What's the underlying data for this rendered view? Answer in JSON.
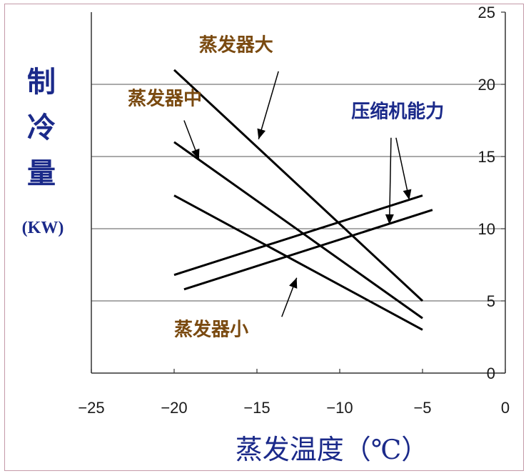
{
  "chart_data": {
    "type": "line",
    "xlabel": "蒸发温度（℃）",
    "ylabel": [
      "制",
      "冷",
      "量"
    ],
    "ylabel_unit": "(KW)",
    "xlim": [
      -25,
      0
    ],
    "ylim": [
      0,
      25
    ],
    "x_ticks": [
      "−25",
      "−20",
      "−15",
      "−10",
      "−5",
      "0"
    ],
    "y_ticks": [
      "0",
      "5",
      "10",
      "15",
      "20",
      "25"
    ],
    "y_axis_side": "right",
    "grid": "horizontal",
    "series": [
      {
        "name": "蒸发器大",
        "x": [
          -20,
          -5
        ],
        "y": [
          21.0,
          5.0
        ],
        "label_pos": [
          -18.5,
          22.3
        ],
        "arrow_tip": [
          -14.9,
          16.2
        ],
        "arrow_tail": [
          -13.7,
          20.9
        ]
      },
      {
        "name": "蒸发器中",
        "x": [
          -20,
          -5
        ],
        "y": [
          16.0,
          3.8
        ],
        "label_pos": [
          -22.8,
          18.6
        ],
        "arrow_tip": [
          -18.5,
          14.8
        ],
        "arrow_tail": [
          -19.4,
          17.5
        ]
      },
      {
        "name": "蒸发器小",
        "x": [
          -20,
          -5
        ],
        "y": [
          12.3,
          3.0
        ],
        "label_pos": [
          -20.0,
          2.6
        ],
        "arrow_tip": [
          -12.6,
          6.6
        ],
        "arrow_tail": [
          -13.5,
          3.9
        ]
      },
      {
        "name": "压缩机能力",
        "x": [
          -20,
          -5
        ],
        "y": [
          6.8,
          12.3
        ],
        "label_pos": [
          -9.3,
          17.7
        ],
        "arrow_tip": [
          -5.8,
          12.0
        ],
        "arrow_tail": [
          -6.6,
          16.3
        ]
      },
      {
        "name": "",
        "x": [
          -19.4,
          -4.4
        ],
        "y": [
          5.8,
          11.3
        ],
        "arrow_tip": [
          -7.0,
          10.3
        ],
        "arrow_tail": [
          -6.9,
          16.3
        ]
      }
    ],
    "colors": {
      "lines": "#000000",
      "grid": "#555555",
      "label_brown": "#7a4a10",
      "label_blue": "#1b2a8a"
    }
  }
}
